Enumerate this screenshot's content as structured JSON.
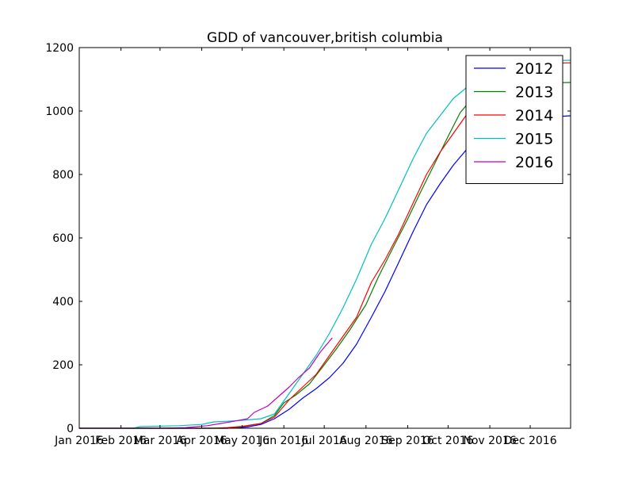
{
  "chart_data": {
    "type": "line",
    "title": "GDD of vancouver,british columbia",
    "xlabel": "",
    "ylabel": "",
    "x_axis": {
      "type": "date",
      "range": [
        "2016-01-01",
        "2016-12-31"
      ],
      "ticks": [
        {
          "date": "2016-01-01",
          "label": "Jan 2016"
        },
        {
          "date": "2016-02-01",
          "label": "Feb 2016"
        },
        {
          "date": "2016-03-01",
          "label": "Mar 2016"
        },
        {
          "date": "2016-04-01",
          "label": "Apr 2016"
        },
        {
          "date": "2016-05-01",
          "label": "May 2016"
        },
        {
          "date": "2016-06-01",
          "label": "Jun 2016"
        },
        {
          "date": "2016-07-01",
          "label": "Jul 2016"
        },
        {
          "date": "2016-08-01",
          "label": "Aug 2016"
        },
        {
          "date": "2016-09-01",
          "label": "Sep 2016"
        },
        {
          "date": "2016-10-01",
          "label": "Oct 2016"
        },
        {
          "date": "2016-11-01",
          "label": "Nov 2016"
        },
        {
          "date": "2016-12-01",
          "label": "Dec 2016"
        }
      ]
    },
    "y_axis": {
      "range": [
        0,
        1200
      ],
      "ticks": [
        0,
        200,
        400,
        600,
        800,
        1000,
        1200
      ]
    },
    "grid": false,
    "legend": {
      "position": "top-right"
    },
    "series": [
      {
        "name": "2012",
        "color": "#0000ff",
        "points": [
          [
            "2016-01-01",
            0
          ],
          [
            "2016-04-20",
            0
          ],
          [
            "2016-05-05",
            4
          ],
          [
            "2016-05-15",
            12
          ],
          [
            "2016-05-25",
            30
          ],
          [
            "2016-06-05",
            60
          ],
          [
            "2016-06-15",
            95
          ],
          [
            "2016-06-25",
            125
          ],
          [
            "2016-07-05",
            160
          ],
          [
            "2016-07-15",
            205
          ],
          [
            "2016-07-25",
            265
          ],
          [
            "2016-08-05",
            350
          ],
          [
            "2016-08-15",
            430
          ],
          [
            "2016-08-25",
            520
          ],
          [
            "2016-09-05",
            620
          ],
          [
            "2016-09-15",
            705
          ],
          [
            "2016-09-25",
            770
          ],
          [
            "2016-10-05",
            830
          ],
          [
            "2016-10-15",
            880
          ],
          [
            "2016-10-25",
            925
          ],
          [
            "2016-11-05",
            955
          ],
          [
            "2016-11-15",
            968
          ],
          [
            "2016-11-25",
            975
          ],
          [
            "2016-12-10",
            980
          ],
          [
            "2016-12-31",
            985
          ]
        ]
      },
      {
        "name": "2013",
        "color": "#008000",
        "points": [
          [
            "2016-01-01",
            0
          ],
          [
            "2016-04-20",
            0
          ],
          [
            "2016-05-01",
            5
          ],
          [
            "2016-05-15",
            15
          ],
          [
            "2016-05-25",
            40
          ],
          [
            "2016-06-01",
            80
          ],
          [
            "2016-06-10",
            105
          ],
          [
            "2016-06-20",
            140
          ],
          [
            "2016-07-01",
            200
          ],
          [
            "2016-07-10",
            250
          ],
          [
            "2016-07-20",
            310
          ],
          [
            "2016-08-01",
            390
          ],
          [
            "2016-08-10",
            475
          ],
          [
            "2016-08-20",
            560
          ],
          [
            "2016-09-01",
            660
          ],
          [
            "2016-09-10",
            740
          ],
          [
            "2016-09-20",
            825
          ],
          [
            "2016-10-01",
            920
          ],
          [
            "2016-10-10",
            995
          ],
          [
            "2016-10-20",
            1045
          ],
          [
            "2016-11-01",
            1065
          ],
          [
            "2016-11-10",
            1080
          ],
          [
            "2016-11-20",
            1085
          ],
          [
            "2016-12-05",
            1088
          ],
          [
            "2016-12-31",
            1090
          ]
        ]
      },
      {
        "name": "2014",
        "color": "#ff0000",
        "points": [
          [
            "2016-01-01",
            0
          ],
          [
            "2016-04-10",
            0
          ],
          [
            "2016-04-20",
            2
          ],
          [
            "2016-05-01",
            6
          ],
          [
            "2016-05-15",
            15
          ],
          [
            "2016-05-25",
            35
          ],
          [
            "2016-06-05",
            90
          ],
          [
            "2016-06-15",
            130
          ],
          [
            "2016-06-25",
            170
          ],
          [
            "2016-07-05",
            230
          ],
          [
            "2016-07-15",
            290
          ],
          [
            "2016-07-25",
            350
          ],
          [
            "2016-08-05",
            460
          ],
          [
            "2016-08-15",
            530
          ],
          [
            "2016-08-25",
            610
          ],
          [
            "2016-09-05",
            710
          ],
          [
            "2016-09-15",
            800
          ],
          [
            "2016-09-25",
            870
          ],
          [
            "2016-10-05",
            930
          ],
          [
            "2016-10-15",
            990
          ],
          [
            "2016-10-25",
            1040
          ],
          [
            "2016-11-05",
            1080
          ],
          [
            "2016-11-15",
            1115
          ],
          [
            "2016-11-25",
            1140
          ],
          [
            "2016-12-10",
            1150
          ],
          [
            "2016-12-31",
            1152
          ]
        ]
      },
      {
        "name": "2015",
        "color": "#00bfbf",
        "points": [
          [
            "2016-01-01",
            0
          ],
          [
            "2016-02-10",
            0
          ],
          [
            "2016-02-15",
            5
          ],
          [
            "2016-03-15",
            8
          ],
          [
            "2016-04-01",
            12
          ],
          [
            "2016-04-10",
            20
          ],
          [
            "2016-04-20",
            22
          ],
          [
            "2016-05-01",
            25
          ],
          [
            "2016-05-15",
            30
          ],
          [
            "2016-05-25",
            45
          ],
          [
            "2016-06-05",
            110
          ],
          [
            "2016-06-15",
            170
          ],
          [
            "2016-06-25",
            230
          ],
          [
            "2016-07-05",
            300
          ],
          [
            "2016-07-15",
            380
          ],
          [
            "2016-07-25",
            470
          ],
          [
            "2016-08-05",
            580
          ],
          [
            "2016-08-15",
            660
          ],
          [
            "2016-08-25",
            750
          ],
          [
            "2016-09-05",
            850
          ],
          [
            "2016-09-15",
            930
          ],
          [
            "2016-09-25",
            985
          ],
          [
            "2016-10-05",
            1040
          ],
          [
            "2016-10-15",
            1075
          ],
          [
            "2016-10-25",
            1095
          ],
          [
            "2016-11-05",
            1120
          ],
          [
            "2016-11-15",
            1140
          ],
          [
            "2016-11-25",
            1150
          ],
          [
            "2016-12-10",
            1158
          ],
          [
            "2016-12-31",
            1160
          ]
        ]
      },
      {
        "name": "2016",
        "color": "#bf00bf",
        "points": [
          [
            "2016-01-01",
            0
          ],
          [
            "2016-03-01",
            0
          ],
          [
            "2016-03-20",
            2
          ],
          [
            "2016-04-05",
            8
          ],
          [
            "2016-04-15",
            15
          ],
          [
            "2016-04-25",
            22
          ],
          [
            "2016-05-05",
            30
          ],
          [
            "2016-05-10",
            50
          ],
          [
            "2016-05-20",
            70
          ],
          [
            "2016-05-28",
            100
          ],
          [
            "2016-06-05",
            130
          ],
          [
            "2016-06-12",
            160
          ],
          [
            "2016-06-20",
            190
          ],
          [
            "2016-06-28",
            240
          ],
          [
            "2016-07-04",
            270
          ],
          [
            "2016-07-07",
            285
          ]
        ]
      }
    ]
  }
}
